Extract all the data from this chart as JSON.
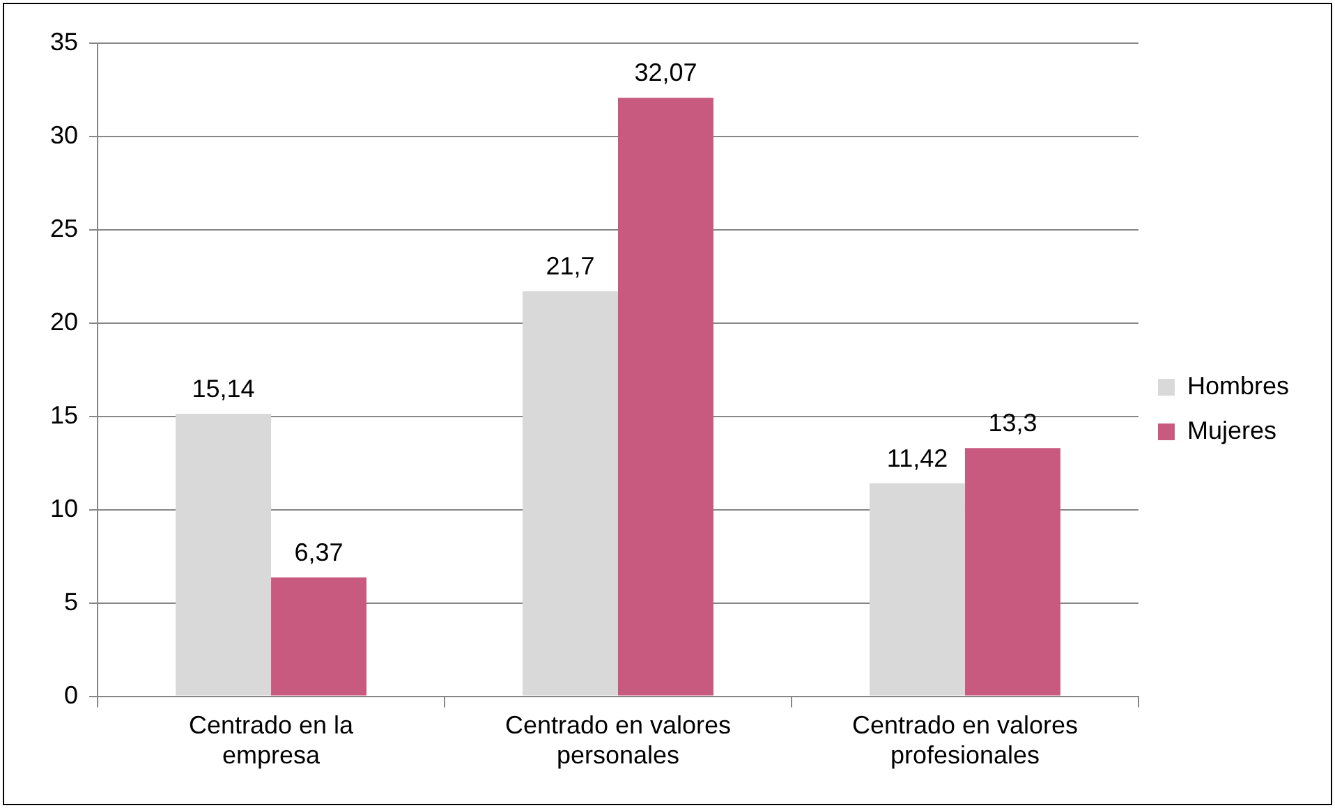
{
  "chart_data": {
    "type": "bar",
    "categories": [
      "Centrado en la empresa",
      "Centrado en valores personales",
      "Centrado en valores profesionales"
    ],
    "series": [
      {
        "name": "Hombres",
        "color": "#d9d9d9",
        "values": [
          15.14,
          21.7,
          11.42
        ],
        "value_labels": [
          "15,14",
          "21,7",
          "11,42"
        ]
      },
      {
        "name": "Mujeres",
        "color": "#c85a80",
        "values": [
          6.37,
          32.07,
          13.3
        ],
        "value_labels": [
          "6,37",
          "32,07",
          "13,3"
        ]
      }
    ],
    "ylim": [
      0,
      35
    ],
    "yticks": [
      0,
      5,
      10,
      15,
      20,
      25,
      30,
      35
    ],
    "grid": "y",
    "legend": "right"
  }
}
